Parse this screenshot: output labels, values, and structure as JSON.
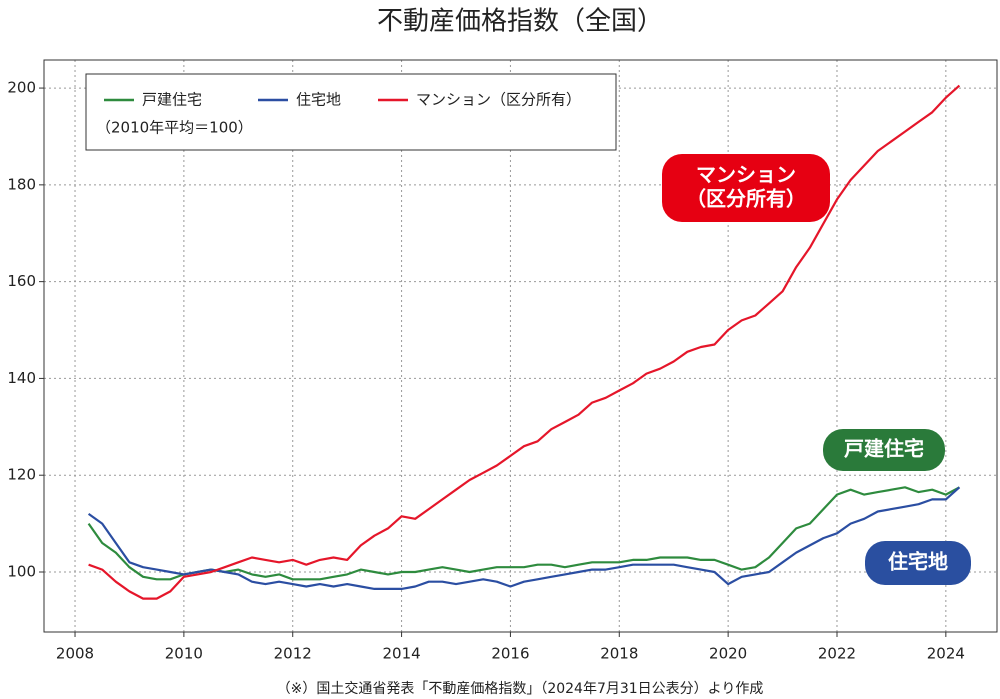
{
  "chart_data": {
    "type": "line",
    "title": "不動産価格指数（全国）",
    "note": "（2010年平均＝100）",
    "source": "（※）国土交通省発表「不動産価格指数」（2024年7月31日公表分）より作成",
    "x": [
      2008.25,
      2008.5,
      2008.75,
      2009,
      2009.25,
      2009.5,
      2009.75,
      2010,
      2010.25,
      2010.5,
      2010.75,
      2011,
      2011.25,
      2011.5,
      2011.75,
      2012,
      2012.25,
      2012.5,
      2012.75,
      2013,
      2013.25,
      2013.5,
      2013.75,
      2014,
      2014.25,
      2014.5,
      2014.75,
      2015,
      2015.25,
      2015.5,
      2015.75,
      2016,
      2016.25,
      2016.5,
      2016.75,
      2017,
      2017.25,
      2017.5,
      2017.75,
      2018,
      2018.25,
      2018.5,
      2018.75,
      2019,
      2019.25,
      2019.5,
      2019.75,
      2020,
      2020.25,
      2020.5,
      2020.75,
      2021,
      2021.25,
      2021.5,
      2021.75,
      2022,
      2022.25,
      2022.5,
      2022.75,
      2023,
      2023.25,
      2023.5,
      2023.75,
      2024,
      2024.25
    ],
    "series": [
      {
        "name": "戸建住宅",
        "color": "#2e8b3e",
        "values": [
          110,
          106,
          104,
          101,
          99,
          98.5,
          98.5,
          99.5,
          100,
          100.5,
          100,
          100.5,
          99.5,
          99,
          99.5,
          98.5,
          98.5,
          98.5,
          99,
          99.5,
          100.5,
          100,
          99.5,
          100,
          100,
          100.5,
          101,
          100.5,
          100,
          100.5,
          101,
          101,
          101,
          101.5,
          101.5,
          101,
          101.5,
          102,
          102,
          102,
          102.5,
          102.5,
          103,
          103,
          103,
          102.5,
          102.5,
          101.5,
          100.5,
          101,
          103,
          106,
          109,
          110,
          113,
          116,
          117,
          116,
          116.5,
          117,
          117.5,
          116.5,
          117,
          116,
          117.5
        ]
      },
      {
        "name": "住宅地",
        "color": "#2b4ea2",
        "values": [
          112,
          110,
          106,
          102,
          101,
          100.5,
          100,
          99.5,
          100,
          100.5,
          100,
          99.5,
          98,
          97.5,
          98,
          97.5,
          97,
          97.5,
          97,
          97.5,
          97,
          96.5,
          96.5,
          96.5,
          97,
          98,
          98,
          97.5,
          98,
          98.5,
          98,
          97,
          98,
          98.5,
          99,
          99.5,
          100,
          100.5,
          100.5,
          101,
          101.5,
          101.5,
          101.5,
          101.5,
          101,
          100.5,
          100,
          97.5,
          99,
          99.5,
          100,
          102,
          104,
          105.5,
          107,
          108,
          110,
          111,
          112.5,
          113,
          113.5,
          114,
          115,
          115,
          117.5
        ]
      },
      {
        "name": "マンション（区分所有）",
        "color": "#e5162a",
        "values": [
          101.5,
          100.5,
          98,
          96,
          94.5,
          94.5,
          96,
          99,
          99.5,
          100,
          101,
          102,
          103,
          102.5,
          102,
          102.5,
          101.5,
          102.5,
          103,
          102.5,
          105.5,
          107.5,
          109,
          111.5,
          111,
          113,
          115,
          117,
          119,
          120.5,
          122,
          124,
          126,
          127,
          129.5,
          131,
          132.5,
          135,
          136,
          137.5,
          139,
          141,
          142,
          143.5,
          145.5,
          146.5,
          147,
          150,
          152,
          153,
          155.5,
          158,
          163,
          167,
          172,
          177,
          181,
          184,
          187,
          189,
          191,
          193,
          195,
          198,
          200.5
        ]
      }
    ],
    "annotations": [
      {
        "lines": [
          "マンション",
          "（区分所有）"
        ],
        "color": "#e60012"
      },
      {
        "lines": [
          "戸建住宅"
        ],
        "color": "#2a7a3a"
      },
      {
        "lines": [
          "住宅地"
        ],
        "color": "#2a4fa0"
      }
    ],
    "xlim": [
      2007.43,
      2024.94
    ],
    "ylim": [
      87.6,
      205.8
    ],
    "xticks": [
      2008,
      2010,
      2012,
      2014,
      2016,
      2018,
      2020,
      2022,
      2024
    ],
    "yticks": [
      100,
      120,
      140,
      160,
      180,
      200
    ],
    "grid": true,
    "legend": "upper left"
  }
}
